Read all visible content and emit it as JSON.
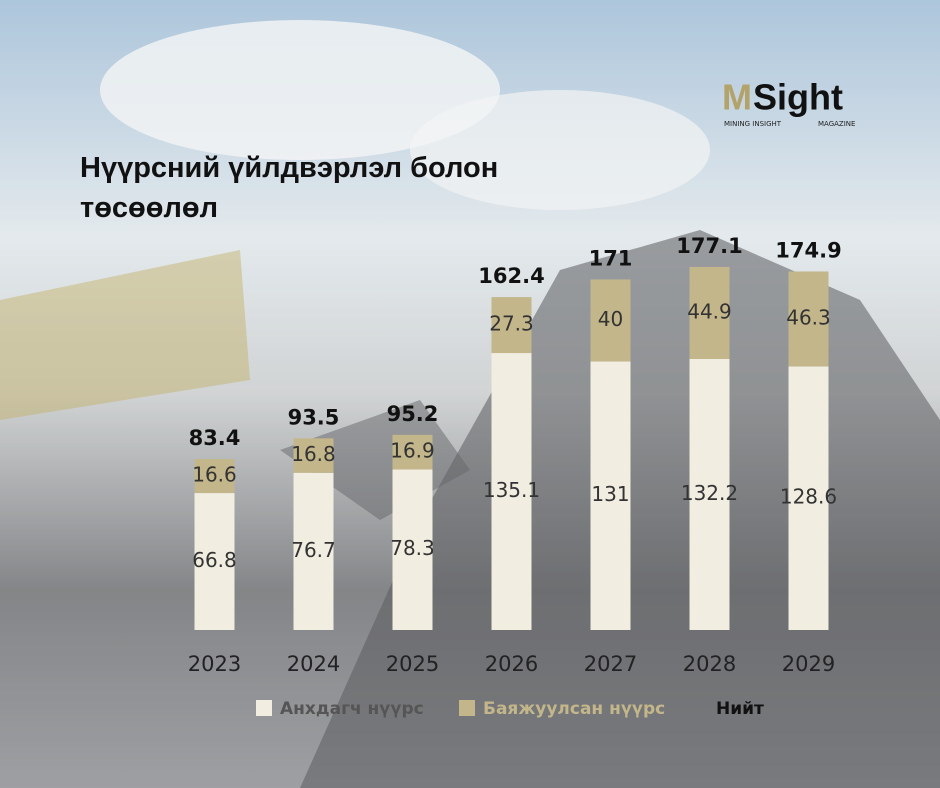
{
  "chart_data": {
    "type": "bar",
    "stacked": true,
    "title": "Нүүрсний үйлдвэрлэл болон төсөөлөл",
    "logo": {
      "mark": "M",
      "word": "Sight",
      "left": "MINING INSIGHT",
      "right": "MAGAZINE"
    },
    "categories": [
      "2023",
      "2024",
      "2025",
      "2026",
      "2027",
      "2028",
      "2029"
    ],
    "series": [
      {
        "name": "Анхдагч нүүрс",
        "color": "#f1ede0",
        "values": [
          66.8,
          76.7,
          78.3,
          135.1,
          131,
          132.2,
          128.6
        ]
      },
      {
        "name": "Баяжуулсан нүүрс",
        "color": "#c3b68a",
        "values": [
          16.6,
          16.8,
          16.9,
          27.3,
          40,
          44.9,
          46.3
        ]
      }
    ],
    "total": {
      "name": "Нийт",
      "values": [
        83.4,
        93.5,
        95.2,
        162.4,
        171,
        177.1,
        174.9
      ]
    },
    "ylim": [
      0,
      200
    ]
  }
}
